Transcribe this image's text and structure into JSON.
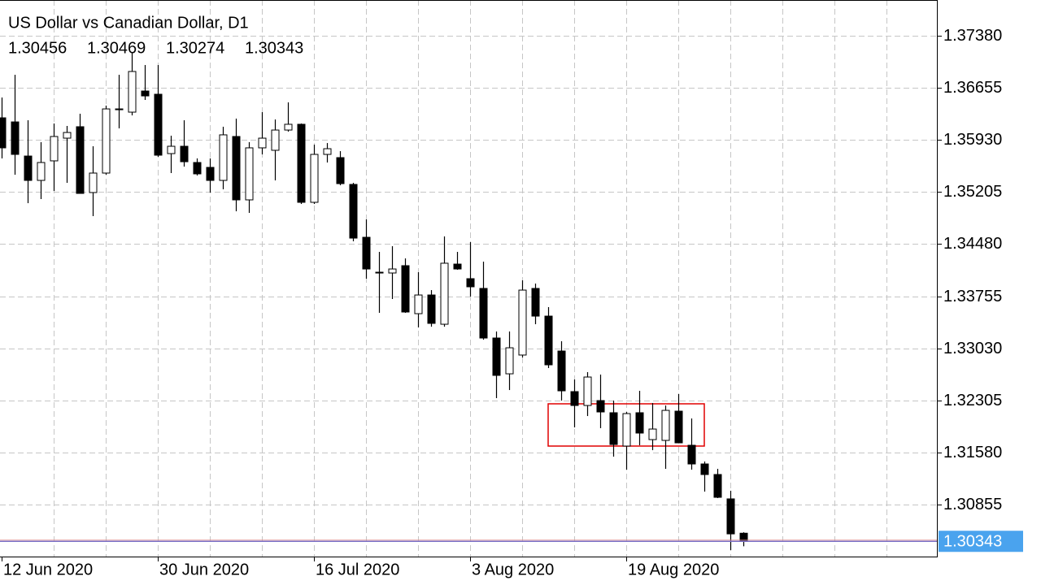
{
  "chart_data": {
    "type": "candlestick",
    "title": "US Dollar vs Canadian Dollar, D1",
    "categories": [
      "12 Jun 2020",
      null,
      null,
      null,
      null,
      null,
      null,
      null,
      null,
      null,
      null,
      null,
      "30 Jun 2020",
      null,
      null,
      null,
      null,
      null,
      null,
      null,
      null,
      null,
      null,
      null,
      "16 Jul 2020",
      null,
      null,
      null,
      null,
      null,
      null,
      null,
      null,
      null,
      null,
      null,
      "3 Aug 2020",
      null,
      null,
      null,
      null,
      null,
      null,
      null,
      null,
      null,
      null,
      null,
      "19 Aug 2020",
      null,
      null,
      null,
      null,
      null,
      null,
      null,
      null,
      null
    ],
    "open": [
      1.36238,
      1.36181,
      1.35706,
      1.35367,
      1.35639,
      1.35955,
      1.36114,
      1.35198,
      1.35469,
      1.36351,
      1.36317,
      1.36611,
      1.36566,
      1.3574,
      1.35842,
      1.35616,
      1.35548,
      1.35367,
      1.35978,
      1.35096,
      1.3582,
      1.35786,
      1.36068,
      1.36148,
      1.35062,
      1.35729,
      1.35684,
      1.35311,
      1.34575,
      1.34089,
      1.34078,
      1.3418,
      1.33512,
      1.33772,
      1.33365,
      1.34202,
      1.33999,
      1.33863,
      1.33173,
      1.32675,
      1.32936,
      1.33863,
      1.33478,
      1.32992,
      1.32427,
      1.32234,
      1.32302,
      1.32133,
      1.31669,
      1.32133,
      1.31759,
      1.31748,
      1.32155,
      1.3168,
      1.3142,
      1.31273,
      1.30934,
      1.30456
    ],
    "high": [
      1.36521,
      1.36837,
      1.36204,
      1.35899,
      1.36159,
      1.36125,
      1.36295,
      1.35842,
      1.36408,
      1.36837,
      1.37143,
      1.36973,
      1.36973,
      1.35989,
      1.36204,
      1.35673,
      1.35673,
      1.36114,
      1.36227,
      1.35899,
      1.36317,
      1.36215,
      1.36453,
      1.36159,
      1.35865,
      1.35887,
      1.35774,
      1.35333,
      1.34824,
      1.34372,
      1.34451,
      1.34281,
      1.34089,
      1.3384,
      1.34587,
      1.34372,
      1.34508,
      1.34236,
      1.33264,
      1.33264,
      1.33976,
      1.33931,
      1.33603,
      1.33128,
      1.32596,
      1.32698,
      1.32664,
      1.32302,
      1.32144,
      1.32438,
      1.32268,
      1.32234,
      1.32393,
      1.32053,
      1.31454,
      1.31352,
      1.31047,
      1.30469
    ],
    "low": [
      1.35673,
      1.35446,
      1.3505,
      1.35107,
      1.3522,
      1.35333,
      1.35186,
      1.3487,
      1.35446,
      1.36091,
      1.36272,
      1.36487,
      1.35695,
      1.35469,
      1.35559,
      1.35435,
      1.35198,
      1.35243,
      1.34937,
      1.34915,
      1.35729,
      1.35367,
      1.36046,
      1.35039,
      1.35039,
      1.35616,
      1.35299,
      1.34519,
      1.33999,
      1.33524,
      1.33716,
      1.33524,
      1.3332,
      1.33331,
      1.33331,
      1.34123,
      1.3375,
      1.3315,
      1.32336,
      1.32449,
      1.32902,
      1.33365,
      1.32755,
      1.32302,
      1.31929,
      1.32087,
      1.31918,
      1.31522,
      1.31341,
      1.3168,
      1.31612,
      1.31352,
      1.31714,
      1.31341,
      1.31035,
      1.30945,
      1.30221,
      1.30274
    ],
    "close": [
      1.3582,
      1.35729,
      1.35367,
      1.35616,
      1.35978,
      1.36034,
      1.35186,
      1.35469,
      1.36362,
      1.36362,
      1.36883,
      1.36543,
      1.35718,
      1.35842,
      1.35627,
      1.35458,
      1.35367,
      1.36001,
      1.35096,
      1.3582,
      1.35955,
      1.36068,
      1.36148,
      1.35062,
      1.35729,
      1.35808,
      1.35322,
      1.34564,
      1.34134,
      1.34078,
      1.34134,
      1.33535,
      1.33772,
      1.33377,
      1.34214,
      1.34134,
      1.33886,
      1.33173,
      1.32653,
      1.33037,
      1.3384,
      1.33478,
      1.328,
      1.32438,
      1.32234,
      1.3263,
      1.32144,
      1.31691,
      1.32121,
      1.3185,
      1.31906,
      1.32166,
      1.31714,
      1.3142,
      1.31273,
      1.30956,
      1.30447,
      1.30343
    ],
    "up_color": "#ffffff",
    "down_color": "#000000",
    "ylim": [
      1.30131,
      1.37878
    ],
    "yticks": [
      {
        "value": 1.3738,
        "label": "1.37380"
      },
      1.36655,
      {
        "value": 1.3593,
        "label": "1.35930"
      },
      1.35205,
      {
        "value": 1.3448,
        "label": "1.34480"
      },
      1.33755,
      {
        "value": 1.3303,
        "label": "1.33030"
      },
      1.32305,
      {
        "value": 1.3158,
        "label": "1.31580"
      },
      1.30855
    ],
    "grid": true
  }
}
